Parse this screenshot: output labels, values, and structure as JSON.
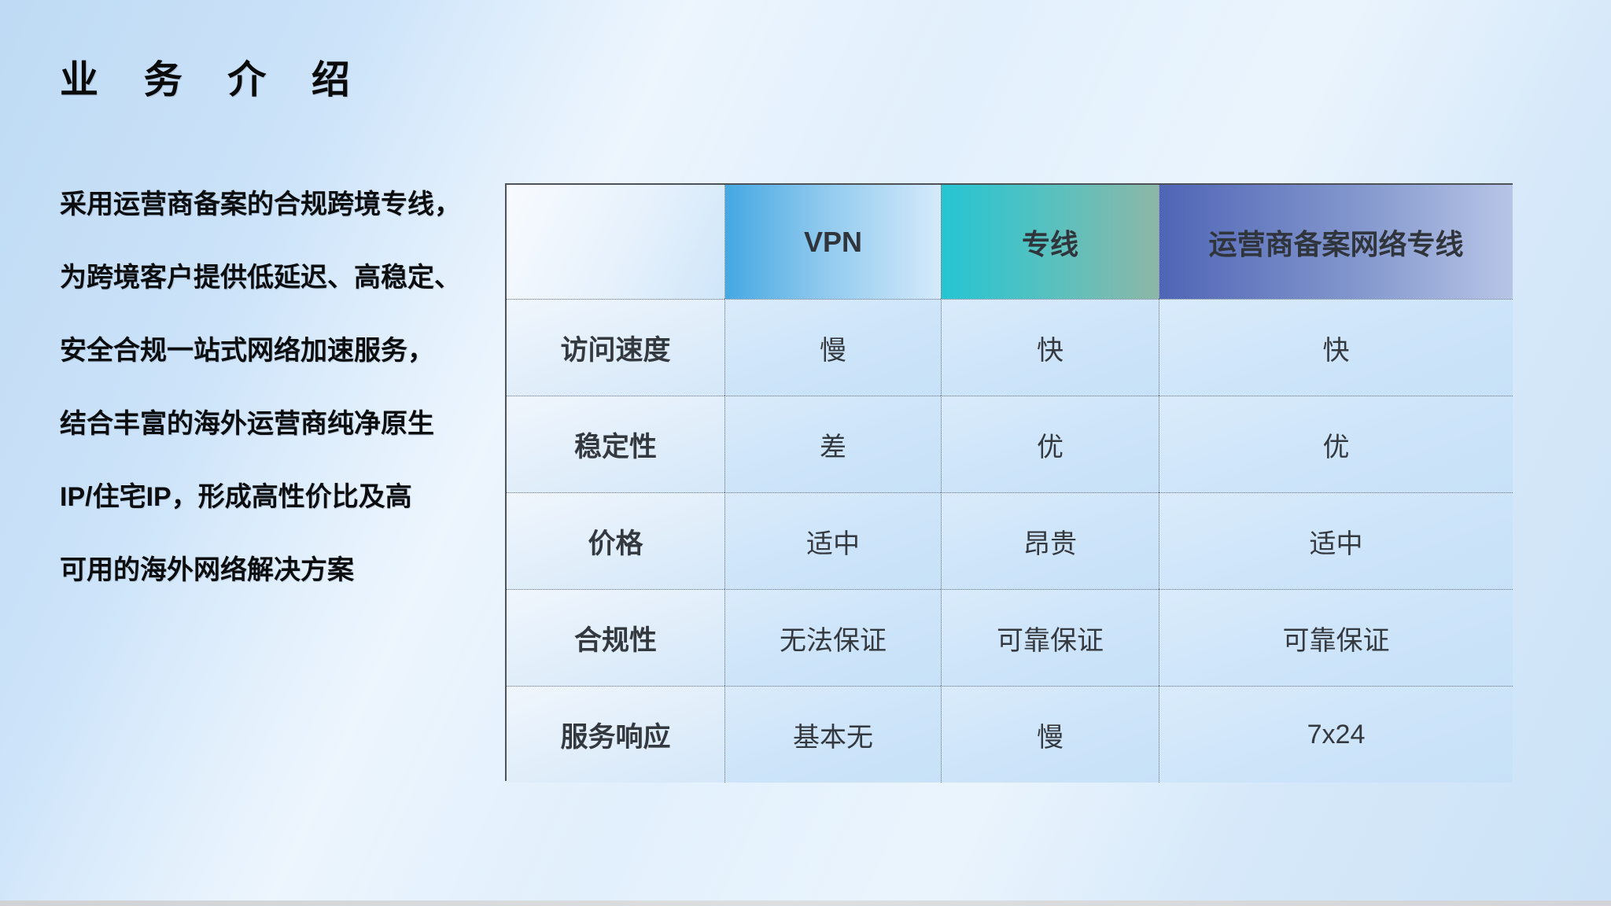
{
  "slide": {
    "title": "业 务 介 绍",
    "description_lines": [
      "采用运营商备案的合规跨境专线，",
      "为跨境客户提供低延迟、高稳定、",
      "安全合规一站式网络加速服务，",
      "结合丰富的海外运营商纯净原生",
      "IP/住宅IP，形成高性价比及高",
      "可用的海外网络解决方案"
    ]
  },
  "table": {
    "columns": [
      "",
      "VPN",
      "专线",
      "运营商备案网络专线"
    ],
    "rows": [
      {
        "label": "访问速度",
        "values": [
          "慢",
          "快",
          "快"
        ]
      },
      {
        "label": "稳定性",
        "values": [
          "差",
          "优",
          "优"
        ]
      },
      {
        "label": "价格",
        "values": [
          "适中",
          "昂贵",
          "适中"
        ]
      },
      {
        "label": "合规性",
        "values": [
          "无法保证",
          "可靠保证",
          "可靠保证"
        ]
      },
      {
        "label": "服务响应",
        "values": [
          "基本无",
          "慢",
          "7x24"
        ]
      }
    ]
  },
  "colors": {
    "vpn_header_gradient": [
      "#45a8e2",
      "#d5eafa"
    ],
    "dedicated_line_header_gradient": [
      "#25c5d3",
      "#8db7a7"
    ],
    "carrier_line_header_gradient": [
      "#4f65b5",
      "#b7c5e6"
    ],
    "table_text": "#34383f",
    "slide_background": "#d5e8fa"
  }
}
